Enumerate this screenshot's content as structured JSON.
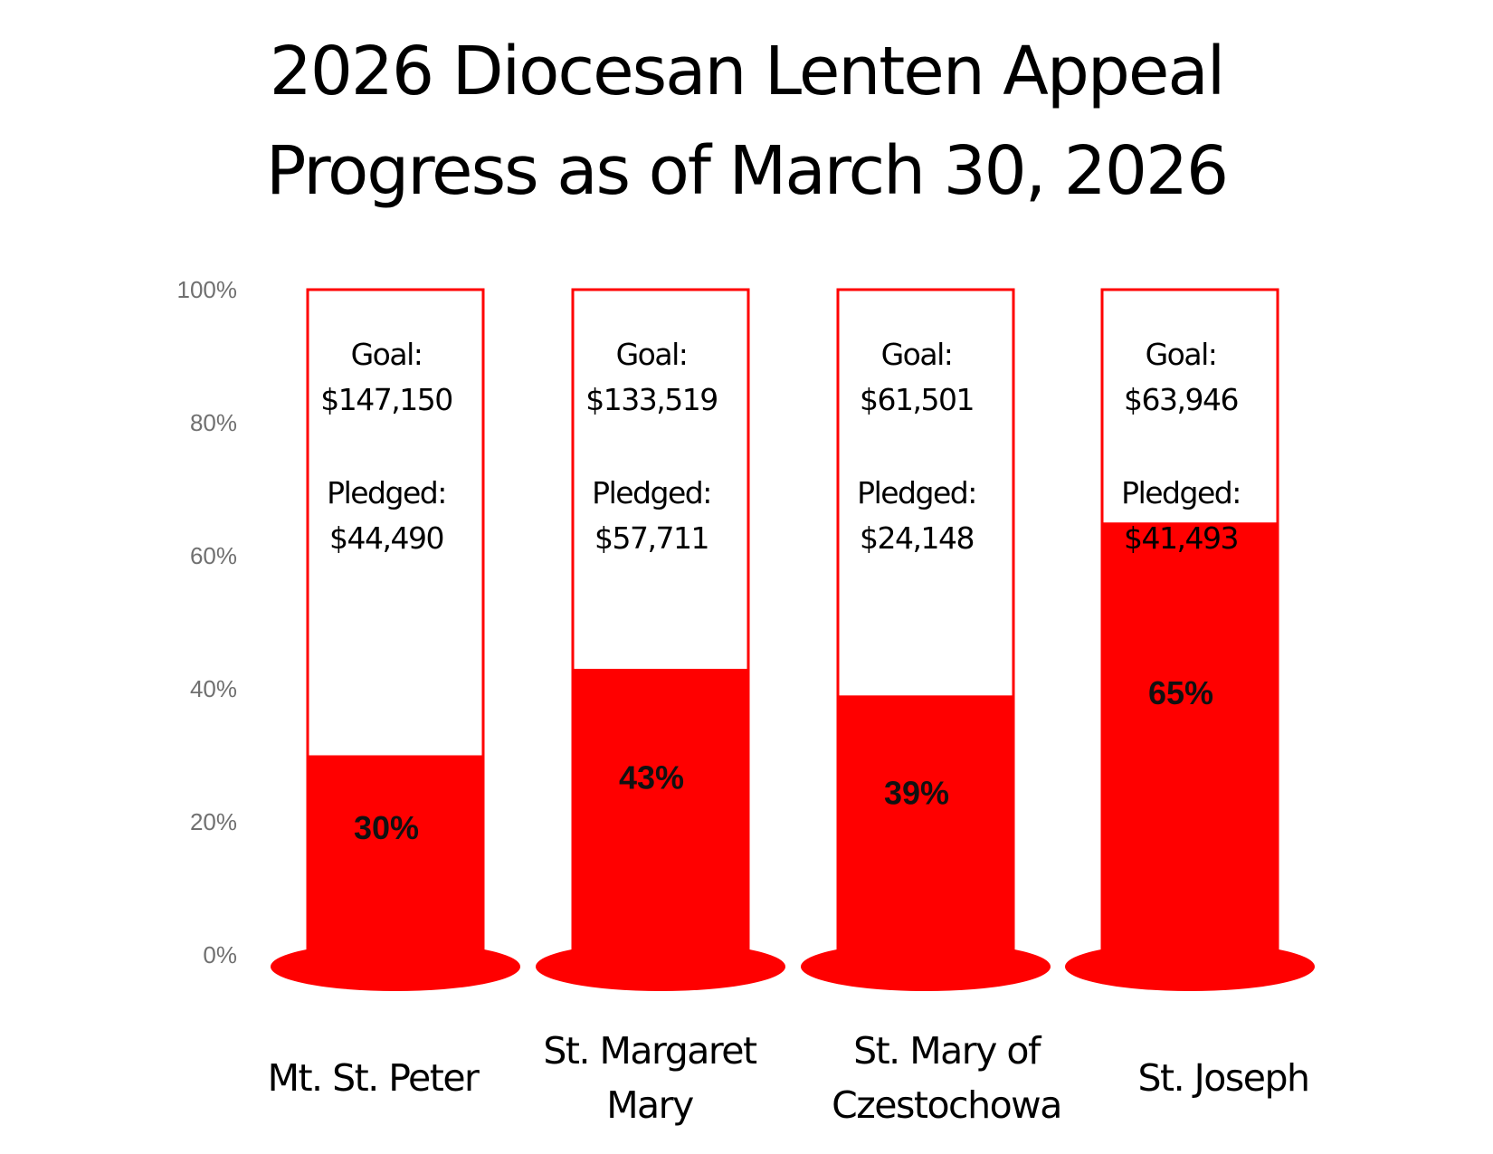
{
  "chart_data": {
    "type": "bar",
    "title": "2026 Diocesan Lenten Appeal",
    "subtitle": "Progress as of March 30, 2026",
    "xlabel": "",
    "ylabel": "",
    "ylim": [
      0,
      100
    ],
    "y_ticks": [
      "0%",
      "20%",
      "40%",
      "60%",
      "80%",
      "100%"
    ],
    "goal_label": "Goal:",
    "pledged_label": "Pledged:",
    "grid": false,
    "fill_color": "#ff0000",
    "categories": [
      {
        "lines": [
          "Mt. St. Peter"
        ]
      },
      {
        "lines": [
          "St. Margaret",
          "Mary"
        ]
      },
      {
        "lines": [
          "St. Mary of",
          "Czestochowa"
        ]
      },
      {
        "lines": [
          "St. Joseph"
        ]
      }
    ],
    "values": [
      30,
      43,
      39,
      65
    ],
    "value_labels": [
      "30%",
      "43%",
      "39%",
      "65%"
    ],
    "goals": [
      "$147,150",
      "$133,519",
      "$61,501",
      "$63,946"
    ],
    "pledged": [
      "$44,490",
      "$57,711",
      "$24,148",
      "$41,493"
    ]
  }
}
